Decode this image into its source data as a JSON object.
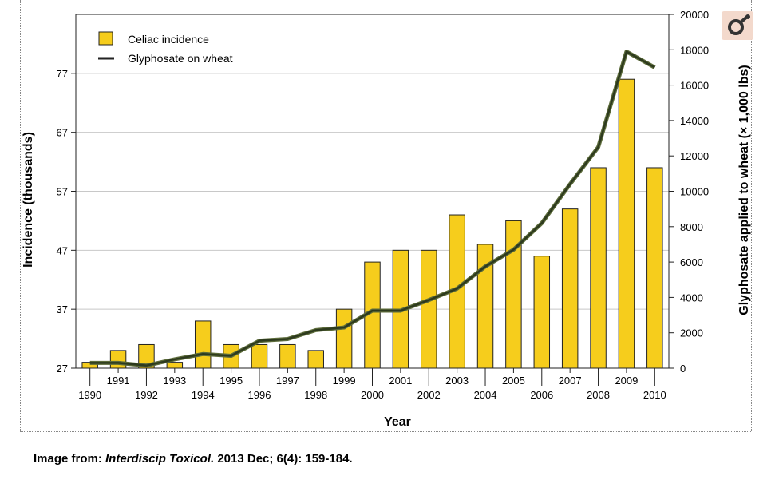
{
  "chart_data": {
    "type": "bar+line",
    "categories": [
      "1990",
      "1991",
      "1992",
      "1993",
      "1994",
      "1995",
      "1996",
      "1997",
      "1998",
      "1999",
      "2000",
      "2001",
      "2002",
      "2003",
      "2004",
      "2005",
      "2006",
      "2007",
      "2008",
      "2009",
      "2010"
    ],
    "series": [
      {
        "name": "Celiac incidence",
        "type": "bar",
        "axis": "left",
        "values": [
          28,
          30,
          31,
          28,
          35,
          31,
          31,
          31,
          30,
          37,
          45,
          47,
          47,
          53,
          48,
          52,
          46,
          54,
          61,
          76,
          61
        ],
        "color": "#f6cd1c"
      },
      {
        "name": "Glyphosate on wheat",
        "type": "line",
        "axis": "right",
        "values": [
          300,
          300,
          150,
          500,
          800,
          700,
          1550,
          1650,
          2150,
          2300,
          3250,
          3250,
          3850,
          4500,
          5750,
          6700,
          8200,
          10400,
          12500,
          17900,
          17000
        ],
        "color": "#2d3a1e"
      }
    ],
    "xlabel": "Year",
    "ylabel": "Incidence (thousands)",
    "y2label": "Glyphosate applied to wheat (× 1,000 lbs)",
    "y_ticks": [
      27,
      37,
      47,
      57,
      67,
      77
    ],
    "ylim": [
      27,
      87
    ],
    "y2_ticks": [
      0,
      2000,
      4000,
      6000,
      8000,
      10000,
      12000,
      14000,
      16000,
      18000,
      20000
    ],
    "y2lim": [
      0,
      20000
    ],
    "legend_position": "top-left",
    "grid": true
  },
  "caption": {
    "prefix": "Image from: ",
    "journal": "Interdiscip Toxicol.",
    "citation": " 2013 Dec; 6(4): 159-184."
  },
  "logo_icon": "publisher-logo-icon"
}
